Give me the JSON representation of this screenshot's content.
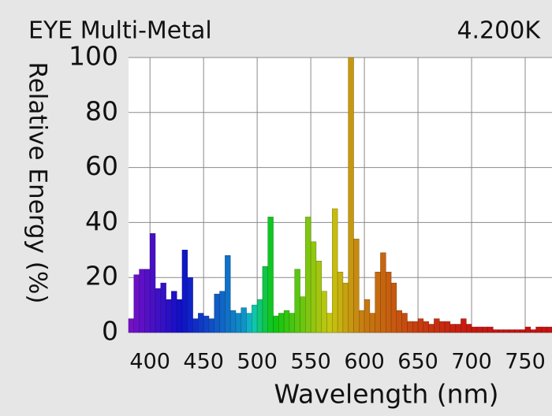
{
  "chart_data": {
    "type": "histogram",
    "title": "EYE Multi-Metal",
    "subtitle": "4.200K",
    "x_label": "Wavelength (nm)",
    "y_label": "Relative Energy (%)",
    "bins": [
      380,
      385,
      390,
      395,
      400,
      405,
      410,
      415,
      420,
      425,
      430,
      435,
      440,
      445,
      450,
      455,
      460,
      465,
      470,
      475,
      480,
      485,
      490,
      495,
      500,
      505,
      510,
      515,
      520,
      525,
      530,
      535,
      540,
      545,
      550,
      555,
      560,
      565,
      570,
      575,
      580,
      585,
      590,
      595,
      600,
      605,
      610,
      615,
      620,
      625,
      630,
      635,
      640,
      645,
      650,
      655,
      660,
      665,
      670,
      675,
      680,
      685,
      690,
      695,
      700,
      705,
      710,
      715,
      720,
      725,
      730,
      735,
      740,
      745,
      750,
      755,
      760,
      765,
      770,
      775
    ],
    "values": [
      5,
      21,
      23,
      23,
      36,
      16,
      18,
      12,
      15,
      12,
      30,
      20,
      5,
      7,
      6,
      5,
      14,
      15,
      28,
      8,
      7,
      9,
      7,
      10,
      12,
      24,
      42,
      6,
      7,
      8,
      7,
      23,
      13,
      42,
      33,
      26,
      15,
      7,
      45,
      22,
      18,
      100,
      34,
      8,
      12,
      7,
      22,
      29,
      22,
      18,
      8,
      7,
      4,
      4,
      5,
      4,
      3,
      5,
      4,
      4,
      3,
      3,
      5,
      3,
      2,
      2,
      2,
      2,
      1,
      1,
      1,
      1,
      1,
      1,
      2,
      1,
      2,
      2,
      2
    ],
    "xlim": [
      380,
      775
    ],
    "ylim": [
      0,
      100
    ],
    "xticks": [
      400,
      450,
      500,
      550,
      600,
      650,
      700,
      750
    ],
    "yticks": [
      0,
      20,
      40,
      60,
      80,
      100
    ],
    "grid": true
  }
}
